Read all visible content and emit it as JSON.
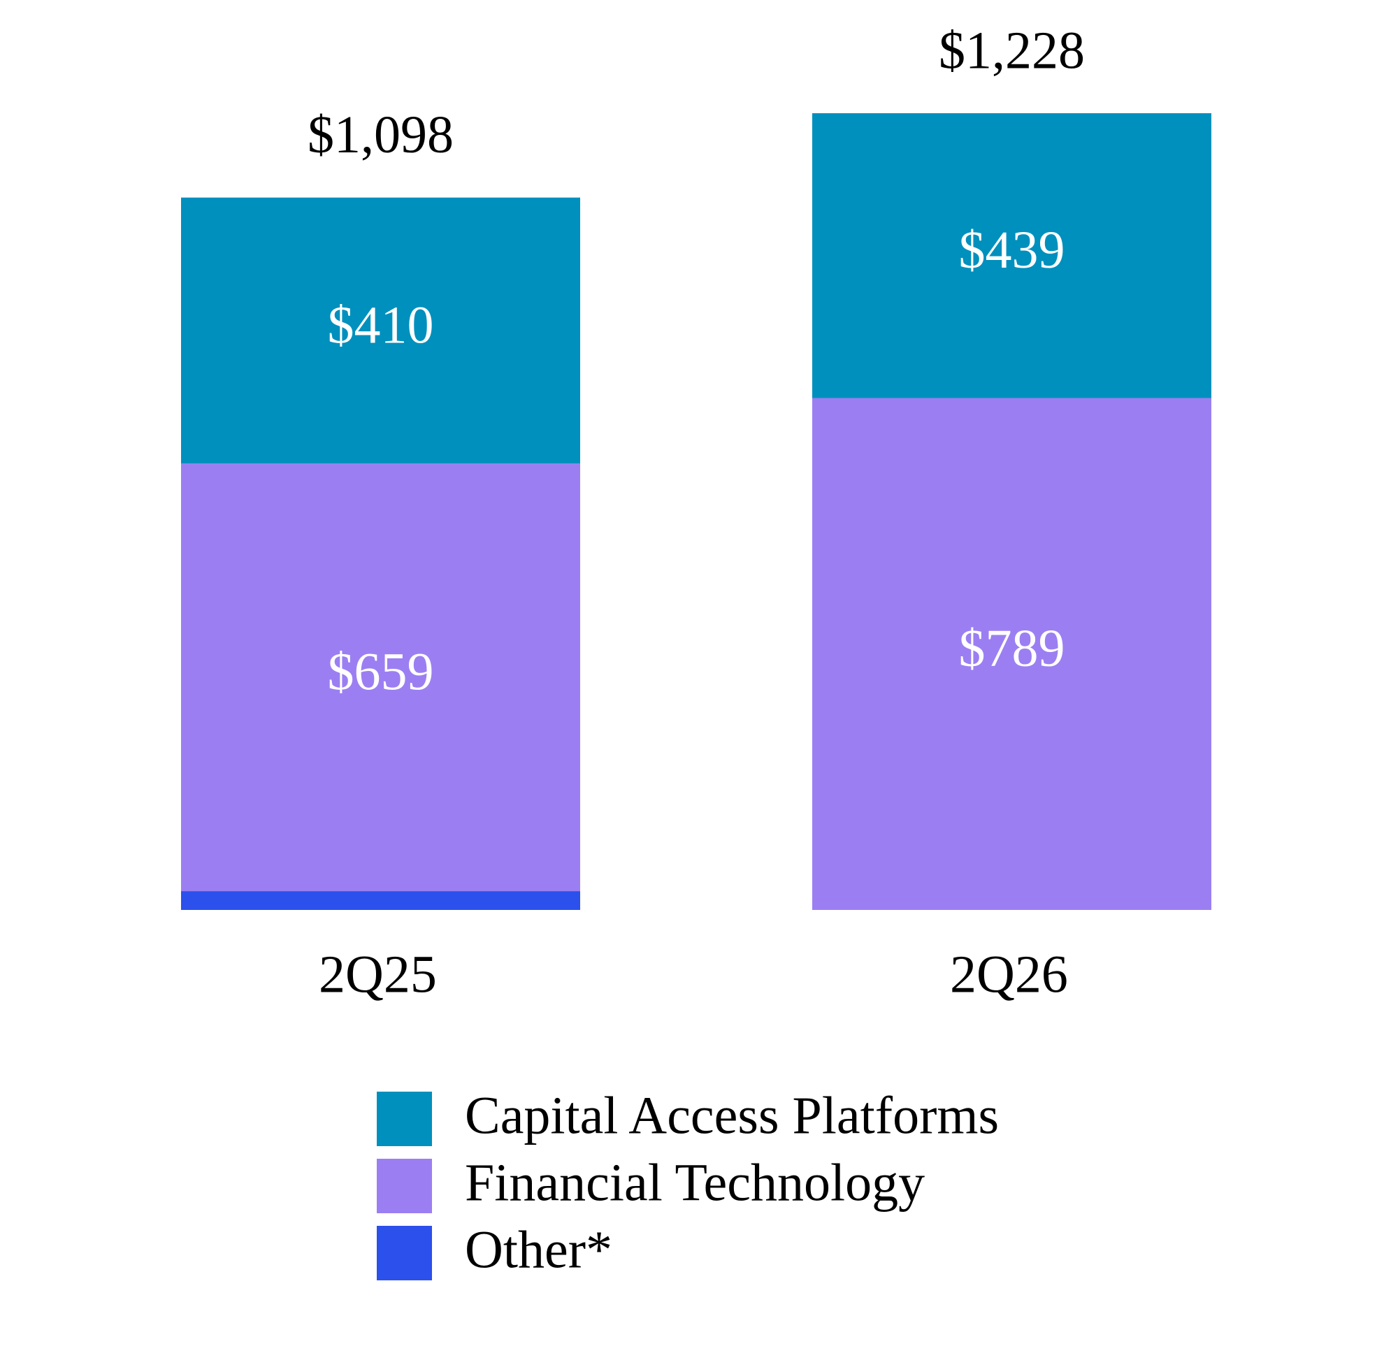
{
  "chart_data": {
    "type": "stacked-bar",
    "categories": [
      "2Q25",
      "2Q26"
    ],
    "series": [
      {
        "name": "Other*",
        "color": "#2b50ec",
        "values": [
          29,
          0
        ],
        "value_labels": [
          null,
          null
        ]
      },
      {
        "name": "Financial Technology",
        "color": "#9b7ff2",
        "values": [
          659,
          789
        ],
        "value_labels": [
          "$659",
          "$789"
        ]
      },
      {
        "name": "Capital Access Platforms",
        "color": "#0090bd",
        "values": [
          410,
          439
        ],
        "value_labels": [
          "$410",
          "$439"
        ]
      }
    ],
    "totals": [
      1098,
      1228
    ],
    "total_labels": [
      "$1,098",
      "$1,228"
    ],
    "legend": "bottom"
  }
}
